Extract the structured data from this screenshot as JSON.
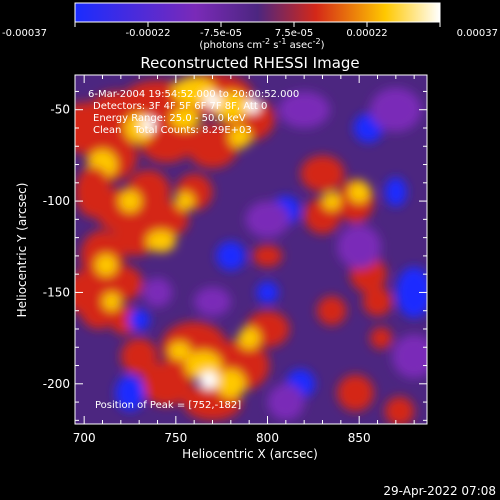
{
  "chart_data": {
    "type": "heatmap",
    "title": "Reconstructed RHESSI Image",
    "xlabel": "Heliocentric X (arcsec)",
    "ylabel": "Heliocentric Y (arcsec)",
    "x_ticks": [
      "700",
      "750",
      "800",
      "850"
    ],
    "y_ticks": [
      "-50",
      "-100",
      "-150",
      "-200"
    ],
    "xlim": [
      695,
      887
    ],
    "ylim": [
      -222,
      -31
    ],
    "colorbar": {
      "ticks": [
        "-0.00037",
        "-0.00022",
        "-7.5e-05",
        "7.5e-05",
        "0.00022",
        "0.00037"
      ],
      "range": [
        -0.00037,
        0.00037
      ],
      "label": "(photons cm",
      "label_sup1": "-2",
      "label_mid": " s",
      "label_sup2": "-1",
      "label_mid2": " asec",
      "label_sup3": "-2",
      "label_end": ")"
    },
    "info_lines": [
      "6-Mar-2004 19:54:52.000 to 20:00:52.000",
      "Detectors: 3F 4F 5F 6F 7F 8F, Att 0",
      "Energy Range: 25.0 - 50.0 keV",
      "Clean    Total Counts: 8.29E+03"
    ],
    "peak_label": "Position of Peak = [752,-182]",
    "colors": {
      "background": "#000000",
      "low": "#1a2cff",
      "mid_low": "#7a2ab8",
      "zero": "#4c2680",
      "mid_high": "#d42818",
      "high": "#ffc800",
      "peak": "#ffffff"
    }
  },
  "footer": {
    "timestamp": "29-Apr-2022 07:08"
  }
}
